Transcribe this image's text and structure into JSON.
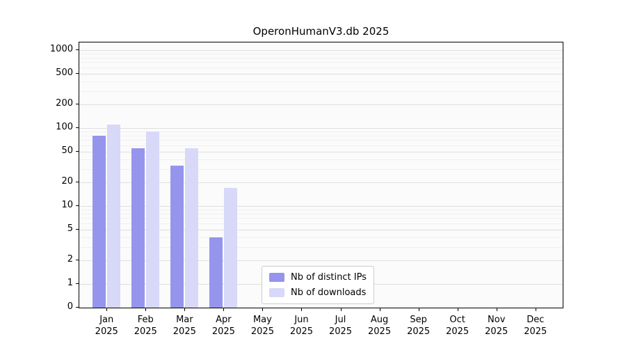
{
  "chart_data": {
    "type": "bar",
    "title": "OperonHumanV3.db 2025",
    "categories": [
      "Jan",
      "Feb",
      "Mar",
      "Apr",
      "May",
      "Jun",
      "Jul",
      "Aug",
      "Sep",
      "Oct",
      "Nov",
      "Dec"
    ],
    "tick_year": "2025",
    "series": [
      {
        "name": "Nb of distinct IPs",
        "color": "#9595ee",
        "values": [
          80,
          55,
          33,
          4,
          0,
          0,
          0,
          0,
          0,
          0,
          0,
          0
        ]
      },
      {
        "name": "Nb of downloads",
        "color": "#d8d8f8",
        "values": [
          110,
          90,
          55,
          17,
          0,
          0,
          0,
          0,
          0,
          0,
          0,
          0
        ]
      }
    ],
    "yscale": "symlog",
    "yticks": [
      0,
      1,
      2,
      5,
      10,
      20,
      50,
      100,
      200,
      500,
      1000
    ],
    "ylim": [
      0,
      1250
    ],
    "grid": true,
    "legend_position": "lower-center",
    "colors": {
      "grid_major": "#dedede",
      "grid_minor": "#f0f0f0",
      "axis": "#000000",
      "plot_bg": "#fbfbfb"
    }
  }
}
